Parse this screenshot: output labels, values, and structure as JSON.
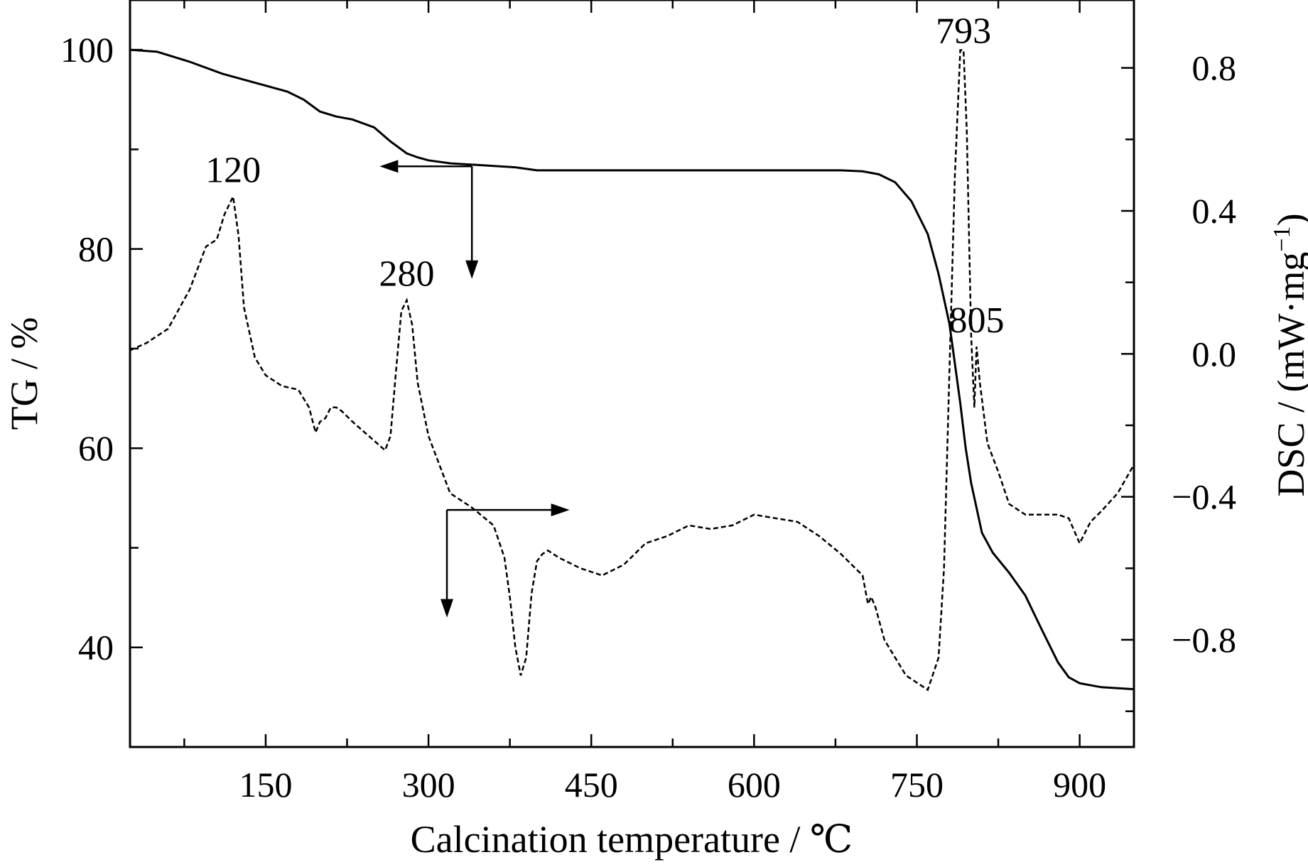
{
  "chart_data": {
    "type": "line",
    "title": "",
    "xlabel": "Calcination temperature / ℃",
    "ylabel": "TG / %",
    "y2label_main": "DSC / (mW·mg",
    "y2label_sup": "−1",
    "y2label_close": ")",
    "xlim": [
      25,
      950
    ],
    "ylim": [
      30,
      105
    ],
    "y2lim": [
      -1.1,
      0.99
    ],
    "xticks": [
      150,
      300,
      450,
      600,
      750,
      900
    ],
    "xticks_minor": [
      75,
      225,
      375,
      525,
      675,
      825
    ],
    "yticks": [
      40,
      60,
      80,
      100
    ],
    "yticks_minor": [
      50,
      70,
      90
    ],
    "y2ticks": [
      -0.8,
      -0.4,
      0.0,
      0.4,
      0.8
    ],
    "y2ticks_minor": [
      -1.0,
      -0.6,
      -0.2,
      0.2,
      0.6
    ],
    "xtick_labels": [
      "150",
      "300",
      "450",
      "600",
      "750",
      "900"
    ],
    "ytick_labels": [
      "40",
      "60",
      "80",
      "100"
    ],
    "y2tick_labels": [
      "−0.8",
      "−0.4",
      "0.0",
      "0.4",
      "0.8"
    ],
    "series": [
      {
        "axis": "left",
        "style": "solid",
        "x": [
          25,
          50,
          80,
          110,
          140,
          170,
          185,
          200,
          215,
          230,
          250,
          265,
          280,
          290,
          300,
          320,
          350,
          380,
          400,
          420,
          450,
          500,
          550,
          600,
          650,
          680,
          700,
          715,
          730,
          745,
          760,
          770,
          780,
          785,
          790,
          795,
          800,
          810,
          820,
          835,
          850,
          865,
          880,
          890,
          900,
          920,
          950
        ],
        "y": [
          100,
          99.8,
          98.8,
          97.6,
          96.7,
          95.8,
          95.0,
          93.8,
          93.3,
          93.0,
          92.2,
          90.8,
          89.6,
          89.2,
          88.9,
          88.6,
          88.4,
          88.2,
          87.9,
          87.9,
          87.9,
          87.9,
          87.9,
          87.9,
          87.9,
          87.9,
          87.8,
          87.5,
          86.7,
          84.8,
          81.5,
          77.5,
          72.5,
          68.5,
          64.5,
          60.0,
          56.5,
          51.5,
          49.5,
          47.5,
          45.2,
          41.8,
          38.5,
          37.0,
          36.4,
          36.0,
          35.8
        ]
      },
      {
        "axis": "right",
        "style": "dashed",
        "x": [
          25,
          40,
          60,
          80,
          95,
          105,
          112,
          120,
          125,
          130,
          140,
          150,
          165,
          180,
          190,
          196,
          200,
          205,
          210,
          215,
          220,
          230,
          245,
          260,
          265,
          270,
          275,
          280,
          285,
          290,
          300,
          310,
          320,
          340,
          360,
          370,
          375,
          380,
          385,
          390,
          395,
          400,
          405,
          410,
          420,
          440,
          460,
          480,
          500,
          520,
          540,
          560,
          580,
          600,
          620,
          640,
          660,
          680,
          700,
          705,
          708,
          712,
          720,
          740,
          760,
          770,
          775,
          780,
          785,
          790,
          793,
          796,
          800,
          803,
          805,
          808,
          815,
          825,
          835,
          850,
          870,
          880,
          890,
          900,
          910,
          920,
          935,
          950
        ],
        "y": [
          0.01,
          0.03,
          0.07,
          0.18,
          0.3,
          0.32,
          0.39,
          0.44,
          0.33,
          0.13,
          -0.01,
          -0.06,
          -0.09,
          -0.1,
          -0.15,
          -0.22,
          -0.19,
          -0.18,
          -0.15,
          -0.15,
          -0.16,
          -0.19,
          -0.23,
          -0.27,
          -0.23,
          -0.05,
          0.12,
          0.15,
          0.08,
          -0.08,
          -0.23,
          -0.31,
          -0.39,
          -0.43,
          -0.48,
          -0.57,
          -0.68,
          -0.82,
          -0.9,
          -0.85,
          -0.67,
          -0.58,
          -0.56,
          -0.55,
          -0.57,
          -0.6,
          -0.62,
          -0.59,
          -0.53,
          -0.51,
          -0.48,
          -0.49,
          -0.48,
          -0.45,
          -0.46,
          -0.47,
          -0.51,
          -0.56,
          -0.62,
          -0.7,
          -0.68,
          -0.71,
          -0.8,
          -0.9,
          -0.94,
          -0.85,
          -0.6,
          -0.05,
          0.5,
          0.85,
          0.85,
          0.62,
          0.05,
          -0.15,
          0.02,
          -0.08,
          -0.25,
          -0.33,
          -0.42,
          -0.45,
          -0.45,
          -0.45,
          -0.46,
          -0.53,
          -0.47,
          -0.44,
          -0.39,
          -0.31
        ]
      }
    ],
    "annotations": [
      {
        "text": "120",
        "x": 120,
        "y2": 0.48
      },
      {
        "text": "280",
        "x": 280,
        "y2": 0.19
      },
      {
        "text": "793",
        "x": 793,
        "y2": 0.87
      },
      {
        "text": "805",
        "x": 805,
        "y2": 0.06
      }
    ],
    "arrows": [
      {
        "for": "TG",
        "x": 340,
        "y": 88.3,
        "dx_to": 255,
        "dy_to": 77
      },
      {
        "for": "DSC",
        "x": 317,
        "y": 53.8,
        "dx_to": 430,
        "dy_to": 43
      }
    ]
  }
}
